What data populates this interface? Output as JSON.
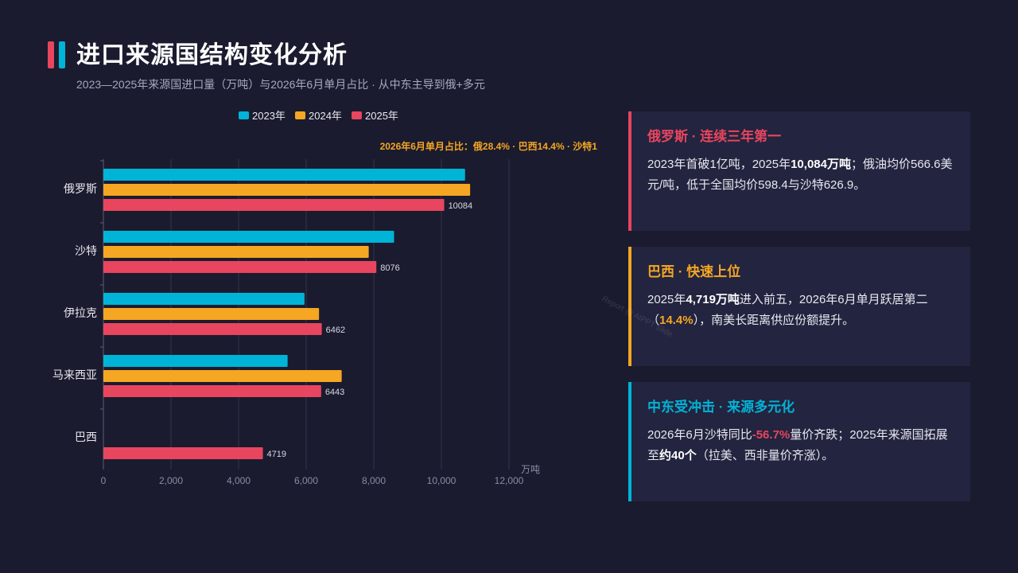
{
  "header": {
    "title": "进口来源国结构变化分析",
    "subtitle": "2023—2025年来源国进口量（万吨）与2026年6月单月占比 · 从中东主导到俄+多元"
  },
  "colors": {
    "y2023": "#00b4d8",
    "y2024": "#f5a623",
    "y2025": "#e8455f",
    "bg": "#1a1b2e",
    "card": "#23243f"
  },
  "chart_data": {
    "type": "bar",
    "orientation": "horizontal",
    "categories": [
      "俄罗斯",
      "沙特",
      "伊拉克",
      "马来西亚",
      "巴西"
    ],
    "series": [
      {
        "name": "2023年",
        "values": [
          10700,
          8600,
          5950,
          5450,
          null
        ]
      },
      {
        "name": "2024年",
        "values": [
          10850,
          7850,
          6380,
          7050,
          null
        ]
      },
      {
        "name": "2025年",
        "values": [
          10084,
          8076,
          6462,
          6443,
          4719
        ]
      }
    ],
    "data_labels": [
      "10084",
      "8076",
      "6462",
      "6443",
      "4719"
    ],
    "annotation": "2026年6月单月占比：俄28.4% · 巴西14.4% · 沙特1",
    "unit_label": "万吨",
    "xlim": [
      0,
      12000
    ],
    "ticks": [
      "0",
      "2,000",
      "4,000",
      "6,000",
      "8,000",
      "10,000",
      "12,000"
    ],
    "tick_values": [
      0,
      2000,
      4000,
      6000,
      8000,
      10000,
      12000
    ],
    "grid": true,
    "legend_position": "top"
  },
  "cards": [
    {
      "title": "俄罗斯 · 连续三年第一",
      "parts": [
        "2023年首破1亿吨，2025年",
        "10,084万吨",
        "；俄油均价566.6美元/吨，低于全国均价598.4与沙特626.9。"
      ]
    },
    {
      "title": "巴西 · 快速上位",
      "parts": [
        "2025年",
        "4,719万吨",
        "进入前五，2026年6月单月跃居第二（",
        "14.4%",
        "），南美长距离供应份额提升。"
      ]
    },
    {
      "title": "中东受冲击 · 来源多元化",
      "parts": [
        "2026年6月沙特同比",
        "-56.7%",
        "量价齐跌；2025年来源国拓展至",
        "约40个",
        "（拉美、西非量价齐涨）。"
      ]
    }
  ],
  "watermark": "Report @ AIPPT Slide"
}
